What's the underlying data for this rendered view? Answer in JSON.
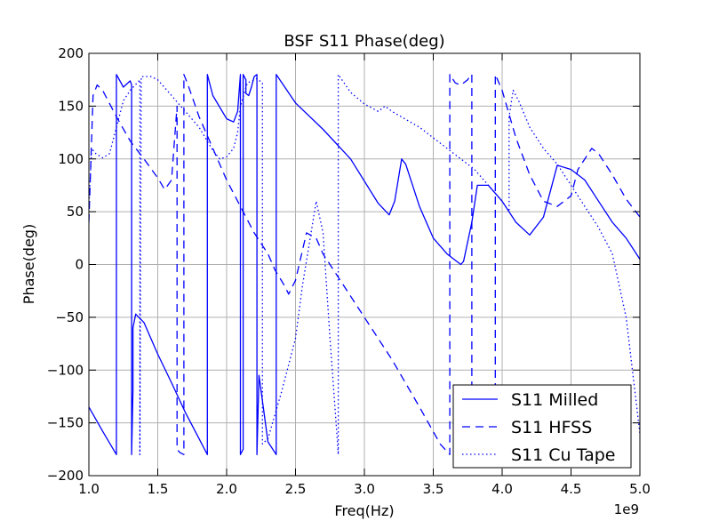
{
  "chart_data": {
    "type": "line",
    "title": "BSF S11 Phase(deg)",
    "xlabel": "Freq(Hz)",
    "ylabel": "Phase(deg)",
    "x_offset_label": "1e9",
    "xlim": [
      1.0,
      5.0
    ],
    "ylim": [
      -200,
      200
    ],
    "x_ticks": [
      1.0,
      1.5,
      2.0,
      2.5,
      3.0,
      3.5,
      4.0,
      4.5,
      5.0
    ],
    "x_tick_labels": [
      "1.0",
      "1.5",
      "2.0",
      "2.5",
      "3.0",
      "3.5",
      "4.0",
      "4.5",
      "5.0"
    ],
    "y_ticks": [
      -200,
      -150,
      -100,
      -50,
      0,
      50,
      100,
      150,
      200
    ],
    "y_tick_labels": [
      "−200",
      "−150",
      "−100",
      "−50",
      "0",
      "50",
      "100",
      "150",
      "200"
    ],
    "grid": true,
    "legend_position": "bottom-right",
    "series_color": "#0000ff",
    "series": [
      {
        "name": "S11 Milled",
        "style": "solid",
        "x": [
          1.0,
          1.1,
          1.2,
          1.2,
          1.25,
          1.3,
          1.31,
          1.31,
          1.32,
          1.32,
          1.34,
          1.4,
          1.5,
          1.6,
          1.7,
          1.8,
          1.86,
          1.86,
          1.9,
          2.0,
          2.05,
          2.08,
          2.1,
          2.1,
          2.12,
          2.12,
          2.14,
          2.14,
          2.16,
          2.18,
          2.2,
          2.22,
          2.22,
          2.235,
          2.25,
          2.3,
          2.36,
          2.36,
          2.5,
          2.7,
          2.9,
          3.1,
          3.18,
          3.22,
          3.27,
          3.3,
          3.4,
          3.5,
          3.6,
          3.7,
          3.72,
          3.78,
          3.82,
          3.9,
          4.0,
          4.1,
          4.2,
          4.3,
          4.4,
          4.5,
          4.6,
          4.7,
          4.8,
          4.9,
          5.0
        ],
        "y": [
          -135,
          -158,
          -180,
          180,
          168,
          174,
          170,
          -180,
          -120,
          -60,
          -47,
          -55,
          -85,
          -112,
          -140,
          -165,
          -180,
          180,
          160,
          138,
          135,
          145,
          180,
          -180,
          -175,
          180,
          175,
          162,
          160,
          168,
          178,
          180,
          -180,
          -105,
          -120,
          -168,
          -180,
          180,
          153,
          128,
          100,
          58,
          47,
          60,
          100,
          95,
          55,
          25,
          10,
          0,
          3,
          40,
          75,
          75,
          60,
          40,
          28,
          45,
          94,
          90,
          80,
          60,
          40,
          25,
          5
        ]
      },
      {
        "name": "S11 HFSS",
        "style": "dashed",
        "x": [
          1.0,
          1.03,
          1.06,
          1.1,
          1.2,
          1.3,
          1.4,
          1.5,
          1.55,
          1.6,
          1.64,
          1.64,
          1.66,
          1.69,
          1.69,
          1.72,
          1.8,
          1.9,
          2.0,
          2.1,
          2.2,
          2.3,
          2.35,
          2.42,
          2.45,
          2.5,
          2.58,
          2.65,
          2.7,
          2.8,
          3.0,
          3.2,
          3.4,
          3.55,
          3.62,
          3.62,
          3.66,
          3.7,
          3.75,
          3.77,
          3.78,
          3.78,
          3.85,
          3.95,
          3.95,
          4.0,
          4.1,
          4.2,
          4.3,
          4.4,
          4.5,
          4.55,
          4.65,
          4.7,
          4.8,
          4.9,
          5.0
        ],
        "y": [
          40,
          160,
          170,
          165,
          140,
          117,
          100,
          82,
          71,
          80,
          150,
          -175,
          -178,
          -180,
          180,
          170,
          140,
          110,
          80,
          55,
          30,
          10,
          -5,
          -20,
          -28,
          -15,
          30,
          25,
          10,
          -10,
          -50,
          -90,
          -135,
          -170,
          -180,
          180,
          172,
          170,
          175,
          180,
          180,
          -180,
          -180,
          -180,
          180,
          165,
          120,
          85,
          60,
          55,
          65,
          90,
          110,
          105,
          85,
          62,
          45
        ]
      },
      {
        "name": "S11 Cu Tape",
        "style": "dotted",
        "x": [
          1.0,
          1.02,
          1.05,
          1.1,
          1.15,
          1.2,
          1.25,
          1.3,
          1.35,
          1.37,
          1.37,
          1.38,
          1.38,
          1.45,
          1.5,
          1.6,
          1.7,
          1.8,
          1.9,
          1.95,
          2.0,
          2.05,
          2.08,
          2.1,
          2.15,
          2.2,
          2.22,
          2.26,
          2.26,
          2.3,
          2.4,
          2.5,
          2.55,
          2.65,
          2.7,
          2.75,
          2.8,
          2.81,
          2.81,
          2.9,
          3.0,
          3.1,
          3.15,
          3.2,
          3.4,
          3.6,
          3.8,
          3.9,
          4.0,
          4.05,
          4.05,
          4.08,
          4.12,
          4.2,
          4.3,
          4.4,
          4.5,
          4.6,
          4.7,
          4.8,
          4.9,
          5.0
        ],
        "y": [
          55,
          110,
          105,
          101,
          105,
          130,
          155,
          165,
          172,
          175,
          -180,
          175,
          178,
          178,
          175,
          160,
          145,
          130,
          108,
          100,
          102,
          110,
          125,
          150,
          172,
          175,
          176,
          172,
          -170,
          -165,
          -120,
          -70,
          -20,
          60,
          30,
          -70,
          -160,
          -180,
          180,
          163,
          152,
          145,
          150,
          145,
          130,
          110,
          90,
          75,
          60,
          50,
          140,
          165,
          155,
          130,
          110,
          95,
          75,
          55,
          35,
          10,
          -50,
          -160
        ]
      }
    ]
  }
}
